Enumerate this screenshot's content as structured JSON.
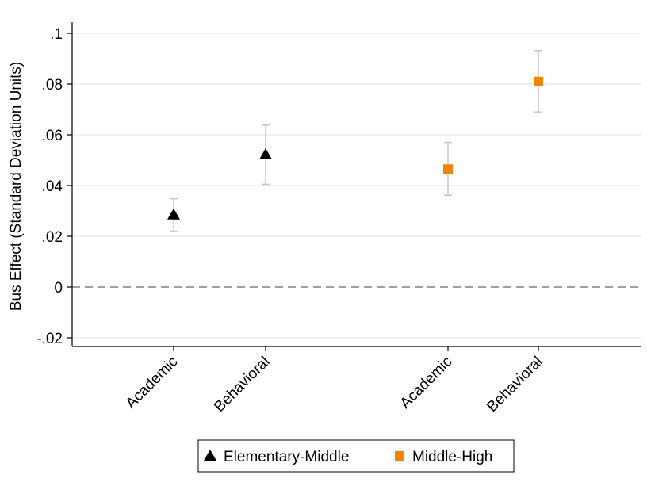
{
  "chart_data": {
    "type": "scatter",
    "ylabel": "Bus Effect (Standard Deviation Units)",
    "ylim": [
      -0.025,
      0.105
    ],
    "yticks": [
      {
        "value": 0.1,
        "label": ".1"
      },
      {
        "value": 0.08,
        "label": ".08"
      },
      {
        "value": 0.06,
        "label": ".06"
      },
      {
        "value": 0.04,
        "label": ".04"
      },
      {
        "value": 0.02,
        "label": ".02"
      },
      {
        "value": 0,
        "label": "0"
      },
      {
        "value": -0.02,
        "label": "-.02"
      }
    ],
    "grid": true,
    "reference_line": {
      "y": 0,
      "style": "dashed"
    },
    "categories": [
      "Academic",
      "Behavioral",
      "Academic",
      "Behavioral"
    ],
    "legend_position": "bottom",
    "series": [
      {
        "name": "Elementary-Middle",
        "marker": "triangle",
        "color": "#000000",
        "points": [
          {
            "category_index": 0,
            "y": 0.0285,
            "ci_low": 0.022,
            "ci_high": 0.0348
          },
          {
            "category_index": 1,
            "y": 0.0522,
            "ci_low": 0.0405,
            "ci_high": 0.0638
          }
        ]
      },
      {
        "name": "Middle-High",
        "marker": "square",
        "color": "#f28500",
        "points": [
          {
            "category_index": 2,
            "y": 0.0465,
            "ci_low": 0.0362,
            "ci_high": 0.057
          },
          {
            "category_index": 3,
            "y": 0.081,
            "ci_low": 0.069,
            "ci_high": 0.0932
          }
        ]
      }
    ],
    "ci_color": "#c8c8c8",
    "grid_color": "#e8e8e8"
  }
}
